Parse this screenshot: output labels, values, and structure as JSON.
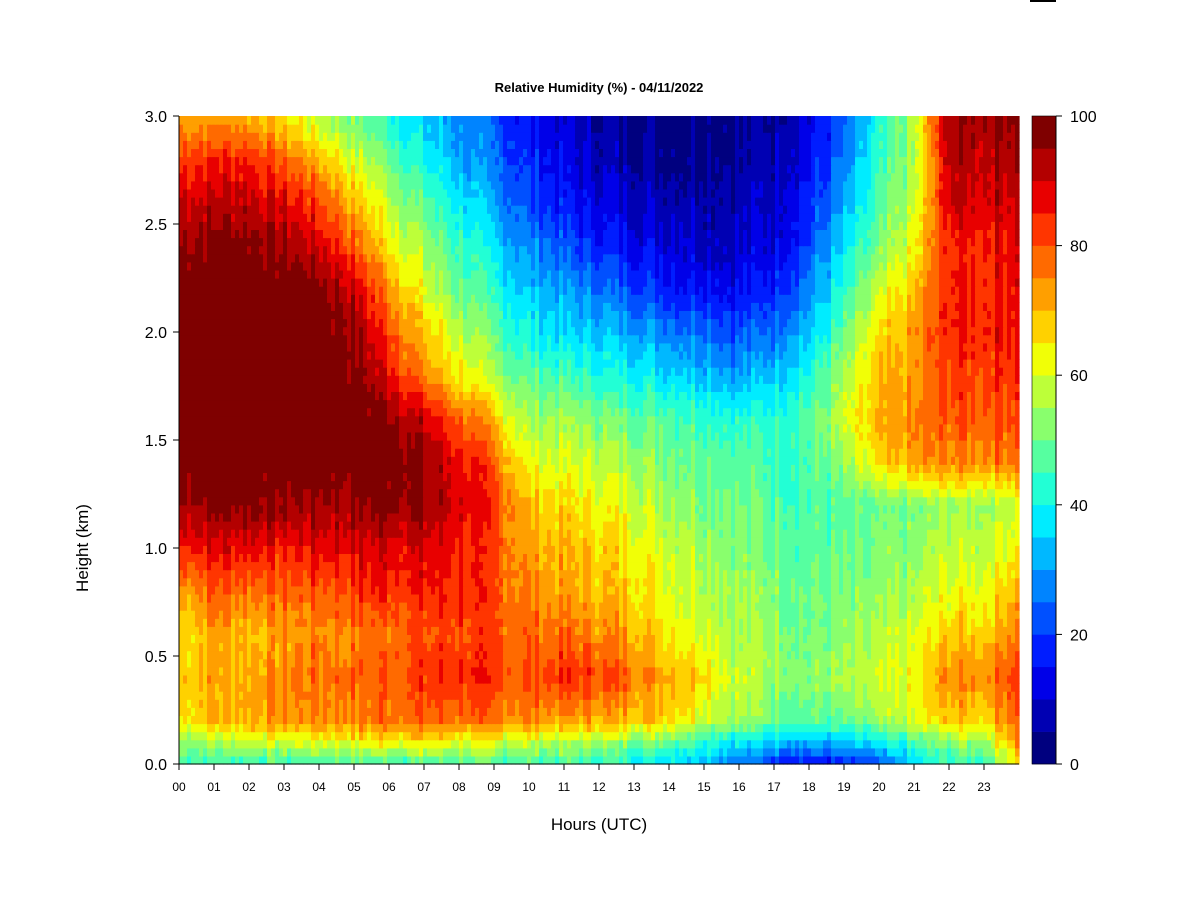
{
  "chart_data": {
    "type": "heatmap",
    "title": "Relative Humidity (%) - 04/11/2022",
    "xlabel": "Hours (UTC)",
    "ylabel": "Height (km)",
    "xlim": [
      0,
      24
    ],
    "ylim": [
      0,
      3
    ],
    "x_ticks": [
      "00",
      "01",
      "02",
      "03",
      "04",
      "05",
      "06",
      "07",
      "08",
      "09",
      "10",
      "11",
      "12",
      "13",
      "14",
      "15",
      "16",
      "17",
      "18",
      "19",
      "20",
      "21",
      "22",
      "23"
    ],
    "y_ticks": [
      "0.0",
      "0.5",
      "1.0",
      "1.5",
      "2.0",
      "2.5",
      "3.0"
    ],
    "colorbar": {
      "min": 0,
      "max": 100,
      "step": 5,
      "tick_labels": [
        "0",
        "20",
        "40",
        "60",
        "80",
        "100"
      ],
      "colors": [
        "#00007f",
        "#0000b3",
        "#0000e8",
        "#001dff",
        "#0050ff",
        "#0084ff",
        "#00b8ff",
        "#00ecff",
        "#22ffd5",
        "#56ffa0",
        "#89ff6d",
        "#bdff39",
        "#f1ff06",
        "#ffd100",
        "#ff9f00",
        "#ff6a00",
        "#ff3500",
        "#e80000",
        "#b30000",
        "#7f0000"
      ]
    },
    "x": [
      0,
      1,
      2,
      3,
      4,
      5,
      6,
      7,
      8,
      9,
      10,
      11,
      12,
      13,
      14,
      15,
      16,
      17,
      18,
      19,
      20,
      21,
      22,
      23,
      24
    ],
    "y": [
      0,
      0.1,
      0.2,
      0.4,
      0.6,
      0.8,
      1.0,
      1.2,
      1.4,
      1.6,
      1.8,
      2.0,
      2.2,
      2.4,
      2.6,
      2.8,
      3.0
    ],
    "values": [
      [
        45,
        45,
        45,
        44,
        45,
        45,
        45,
        45,
        45,
        45,
        45,
        45,
        43,
        40,
        38,
        33,
        25,
        20,
        15,
        15,
        20,
        35,
        45,
        45,
        65
      ],
      [
        55,
        55,
        60,
        58,
        62,
        62,
        65,
        64,
        62,
        60,
        58,
        55,
        55,
        52,
        50,
        45,
        38,
        35,
        32,
        32,
        35,
        45,
        52,
        55,
        75
      ],
      [
        65,
        70,
        72,
        72,
        75,
        75,
        78,
        78,
        78,
        75,
        75,
        72,
        72,
        70,
        68,
        60,
        55,
        50,
        48,
        48,
        52,
        60,
        68,
        68,
        80
      ],
      [
        68,
        72,
        72,
        75,
        78,
        78,
        80,
        82,
        85,
        82,
        80,
        84,
        82,
        78,
        72,
        68,
        58,
        55,
        52,
        55,
        58,
        62,
        75,
        75,
        85
      ],
      [
        65,
        72,
        70,
        72,
        75,
        75,
        78,
        80,
        82,
        80,
        78,
        78,
        75,
        72,
        65,
        62,
        55,
        55,
        50,
        52,
        55,
        60,
        68,
        68,
        78
      ],
      [
        72,
        80,
        78,
        78,
        80,
        82,
        85,
        85,
        85,
        80,
        75,
        72,
        70,
        68,
        62,
        58,
        55,
        52,
        50,
        50,
        52,
        55,
        62,
        62,
        72
      ],
      [
        85,
        88,
        88,
        85,
        88,
        88,
        90,
        88,
        85,
        80,
        72,
        70,
        68,
        65,
        60,
        56,
        52,
        50,
        48,
        48,
        50,
        52,
        58,
        58,
        65
      ],
      [
        95,
        98,
        98,
        95,
        95,
        95,
        98,
        95,
        90,
        82,
        70,
        66,
        64,
        60,
        55,
        52,
        50,
        48,
        46,
        46,
        48,
        50,
        55,
        55,
        60
      ],
      [
        100,
        100,
        100,
        100,
        100,
        100,
        100,
        95,
        88,
        78,
        62,
        60,
        58,
        55,
        52,
        50,
        48,
        46,
        46,
        52,
        65,
        72,
        75,
        75,
        78
      ],
      [
        100,
        100,
        100,
        100,
        100,
        100,
        98,
        90,
        80,
        68,
        55,
        55,
        52,
        50,
        48,
        45,
        42,
        44,
        48,
        58,
        70,
        75,
        80,
        80,
        82
      ],
      [
        100,
        100,
        100,
        100,
        100,
        98,
        88,
        75,
        65,
        55,
        48,
        45,
        42,
        40,
        38,
        35,
        30,
        35,
        42,
        55,
        68,
        72,
        82,
        82,
        85
      ],
      [
        100,
        100,
        100,
        100,
        100,
        96,
        82,
        68,
        58,
        48,
        40,
        36,
        34,
        32,
        28,
        26,
        22,
        26,
        34,
        48,
        65,
        72,
        85,
        85,
        88
      ],
      [
        100,
        100,
        100,
        100,
        98,
        90,
        75,
        60,
        50,
        42,
        34,
        30,
        26,
        22,
        18,
        16,
        14,
        18,
        28,
        42,
        58,
        68,
        85,
        85,
        88
      ],
      [
        95,
        98,
        98,
        95,
        90,
        80,
        65,
        55,
        45,
        36,
        28,
        22,
        18,
        14,
        12,
        10,
        10,
        12,
        22,
        36,
        50,
        62,
        85,
        85,
        90
      ],
      [
        92,
        92,
        92,
        88,
        82,
        70,
        58,
        48,
        38,
        30,
        22,
        16,
        12,
        10,
        8,
        8,
        8,
        10,
        18,
        30,
        45,
        58,
        90,
        90,
        92
      ],
      [
        82,
        85,
        85,
        78,
        70,
        60,
        50,
        40,
        32,
        25,
        18,
        12,
        8,
        6,
        5,
        5,
        5,
        8,
        14,
        25,
        42,
        55,
        92,
        92,
        95
      ],
      [
        72,
        72,
        72,
        65,
        58,
        50,
        42,
        35,
        28,
        22,
        15,
        10,
        6,
        4,
        4,
        4,
        4,
        6,
        12,
        22,
        40,
        55,
        95,
        95,
        98
      ]
    ],
    "grid": false,
    "legend": "colorbar-right"
  }
}
